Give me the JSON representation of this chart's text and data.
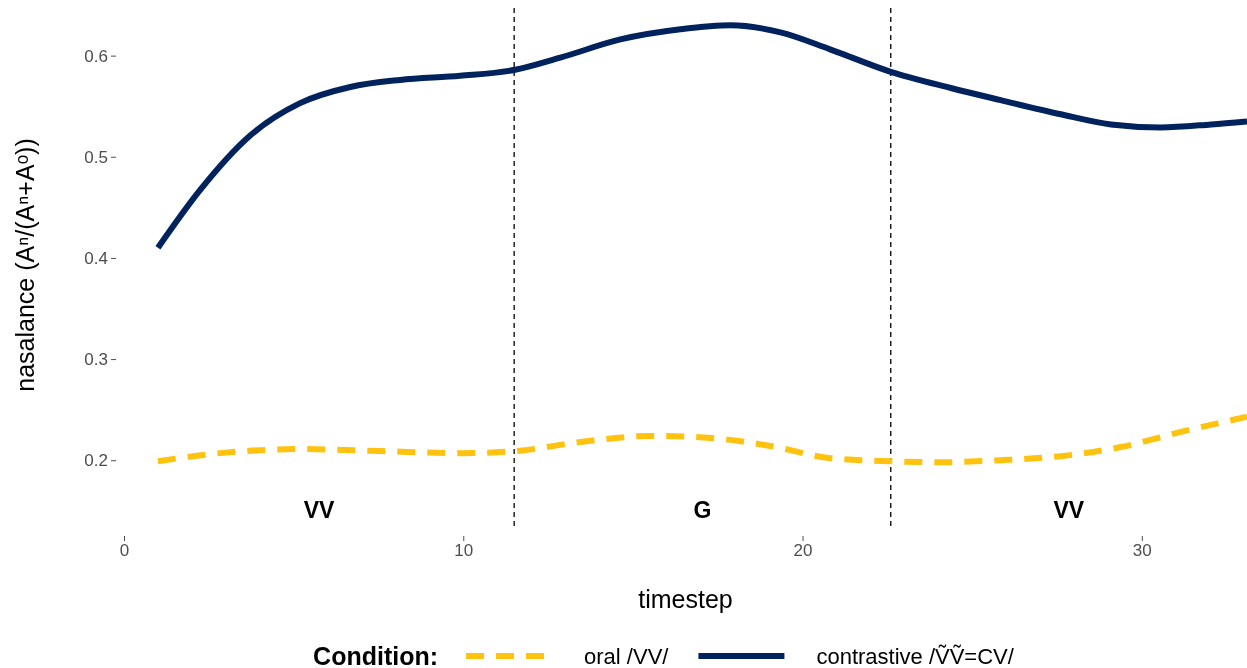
{
  "chart_data": {
    "type": "line",
    "xlabel": "timestep",
    "ylabel": "nasalance (Aⁿ/(Aⁿ+Aᵒ))",
    "legend_title": "Condition:",
    "legend": "bottom",
    "xlim": [
      0,
      33.1
    ],
    "xticks": [
      0,
      10,
      20,
      30
    ],
    "ylim": [
      0.131,
      0.655
    ],
    "yticks": [
      0.2,
      0.3,
      0.4,
      0.5,
      0.6
    ],
    "series": [
      {
        "name": "oral /VV/",
        "color": "#ffc20e",
        "line_style": "dashed",
        "x": [
          1.0,
          2.83,
          5.19,
          7.55,
          9.91,
          11.53,
          13.45,
          15.52,
          17.29,
          19.06,
          20.83,
          22.6,
          24.07,
          25.84,
          27.61,
          29.38,
          31.15,
          33.1
        ],
        "values": [
          0.199,
          0.207,
          0.211,
          0.209,
          0.207,
          0.209,
          0.218,
          0.224,
          0.222,
          0.214,
          0.202,
          0.199,
          0.198,
          0.2,
          0.204,
          0.213,
          0.228,
          0.243
        ]
      },
      {
        "name": "contrastive /ṼṼ=CV/",
        "color": "#00235e",
        "line_style": "solid",
        "x": [
          1.0,
          2.24,
          3.72,
          5.19,
          6.67,
          8.14,
          9.91,
          11.53,
          12.86,
          14.63,
          16.4,
          17.88,
          19.35,
          20.83,
          22.6,
          24.37,
          25.84,
          27.61,
          29.09,
          30.56,
          32.04,
          33.1
        ],
        "values": [
          0.41,
          0.467,
          0.521,
          0.553,
          0.569,
          0.576,
          0.58,
          0.586,
          0.598,
          0.616,
          0.626,
          0.63,
          0.623,
          0.606,
          0.584,
          0.568,
          0.556,
          0.542,
          0.532,
          0.529,
          0.532,
          0.535
        ]
      }
    ],
    "ref_lines": [
      {
        "axis": "x",
        "value": 11.5,
        "color": "#000000",
        "line_style": "dashed"
      },
      {
        "axis": "x",
        "value": 22.6,
        "color": "#000000",
        "line_style": "dashed"
      }
    ],
    "annotations": [
      "VV",
      "G",
      "VV"
    ]
  }
}
